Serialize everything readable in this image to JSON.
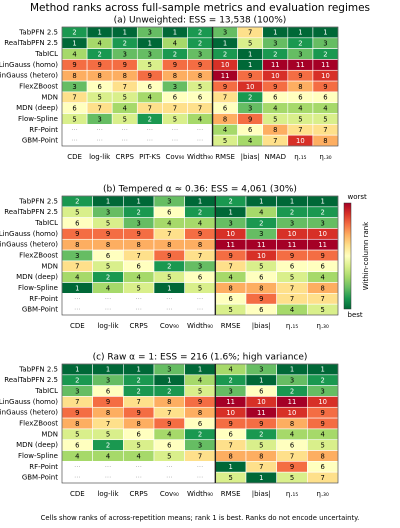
{
  "title": "Method ranks across full-sample metrics and evaluation regimes",
  "footnote": "Cells show ranks of across-repetition means; rank 1 is best. Ranks do not encode uncertainty.",
  "colorbar": {
    "label": "Within-column rank",
    "high_label": "worst",
    "low_label": "best",
    "clim": [
      1,
      11
    ],
    "colormap": "RdYlGn_r"
  },
  "chart_data": [
    {
      "type": "heatmap",
      "subtitle": "(a) Unweighted: ESS = 13,538 (100%)",
      "rows": [
        "TabPFN 2.5",
        "RealTabPFN 2.5",
        "TabICL",
        "LinGauss (homo)",
        "LinGauss (hetero)",
        "FlexZBoost",
        "MDN",
        "MDN (deep)",
        "Flow-Spline",
        "RF-Point",
        "GBM-Point"
      ],
      "columns": [
        "CDE",
        "log-lik",
        "CRPS",
        "PIT-KS",
        "Cov₉₀",
        "Width₉₀",
        "RMSE",
        "|bias|",
        "NMAD",
        "η.₁₅",
        "η.₃₀"
      ],
      "separator_after": 5,
      "na_label": "···",
      "values": [
        [
          2,
          1,
          1,
          3,
          1,
          2,
          3,
          7,
          1,
          1,
          1
        ],
        [
          1,
          4,
          2,
          1,
          4,
          2,
          1,
          5,
          3,
          2,
          3
        ],
        [
          4,
          2,
          3,
          3,
          2,
          3,
          2,
          1,
          2,
          3,
          2
        ],
        [
          9,
          9,
          9,
          5,
          9,
          9,
          10,
          1,
          11,
          11,
          11
        ],
        [
          8,
          8,
          8,
          9,
          8,
          8,
          11,
          9,
          10,
          9,
          10
        ],
        [
          3,
          6,
          7,
          6,
          3,
          5,
          9,
          10,
          9,
          8,
          9
        ],
        [
          7,
          5,
          5,
          4,
          6,
          6,
          7,
          2,
          6,
          6,
          6
        ],
        [
          6,
          7,
          4,
          7,
          7,
          7,
          6,
          3,
          4,
          4,
          4
        ],
        [
          5,
          3,
          5,
          2,
          5,
          4,
          8,
          9,
          5,
          5,
          5
        ],
        [
          null,
          null,
          null,
          null,
          null,
          null,
          4,
          6,
          8,
          7,
          7
        ],
        [
          null,
          null,
          null,
          null,
          null,
          null,
          5,
          4,
          7,
          10,
          8
        ]
      ]
    },
    {
      "type": "heatmap",
      "subtitle": "(b) Tempered α ≈ 0.36: ESS = 4,061 (30%)",
      "rows": [
        "TabPFN 2.5",
        "RealTabPFN 2.5",
        "TabICL",
        "LinGauss (homo)",
        "LinGauss (hetero)",
        "FlexZBoost",
        "MDN",
        "MDN (deep)",
        "Flow-Spline",
        "RF-Point",
        "GBM-Point"
      ],
      "columns": [
        "CDE",
        "log-lik",
        "CRPS",
        "Cov₉₀",
        "Width₉₀",
        "RMSE",
        "|bias|",
        "η.₁₅",
        "η.₃₀"
      ],
      "separator_after": 4,
      "na_label": "···",
      "values": [
        [
          2,
          1,
          1,
          3,
          1,
          2,
          1,
          1,
          1
        ],
        [
          5,
          3,
          2,
          6,
          2,
          1,
          4,
          2,
          2
        ],
        [
          6,
          5,
          3,
          4,
          4,
          3,
          2,
          3,
          3
        ],
        [
          9,
          9,
          9,
          7,
          9,
          10,
          3,
          10,
          10
        ],
        [
          8,
          8,
          8,
          8,
          8,
          11,
          11,
          11,
          11
        ],
        [
          3,
          6,
          7,
          9,
          7,
          9,
          10,
          9,
          9
        ],
        [
          7,
          5,
          6,
          2,
          3,
          7,
          5,
          6,
          6
        ],
        [
          4,
          2,
          4,
          5,
          6,
          4,
          6,
          5,
          4
        ],
        [
          1,
          4,
          5,
          1,
          5,
          8,
          8,
          7,
          8
        ],
        [
          null,
          null,
          null,
          null,
          null,
          6,
          9,
          7,
          7
        ],
        [
          null,
          null,
          null,
          null,
          null,
          5,
          6,
          4,
          5
        ]
      ]
    },
    {
      "type": "heatmap",
      "subtitle": "(c) Raw α = 1: ESS = 216 (1.6%; high variance)",
      "rows": [
        "TabPFN 2.5",
        "RealTabPFN 2.5",
        "TabICL",
        "LinGauss (homo)",
        "LinGauss (hetero)",
        "FlexZBoost",
        "MDN",
        "MDN (deep)",
        "Flow-Spline",
        "RF-Point",
        "GBM-Point"
      ],
      "columns": [
        "CDE",
        "log-lik",
        "CRPS",
        "Cov₉₀",
        "Width₉₀",
        "RMSE",
        "|bias|",
        "η.₁₅",
        "η.₃₀"
      ],
      "separator_after": 4,
      "na_label": "···",
      "values": [
        [
          1,
          1,
          1,
          3,
          1,
          4,
          3,
          1,
          1
        ],
        [
          2,
          3,
          2,
          1,
          4,
          2,
          1,
          3,
          2
        ],
        [
          3,
          6,
          2,
          2,
          5,
          3,
          6,
          2,
          3
        ],
        [
          7,
          9,
          7,
          8,
          9,
          11,
          10,
          11,
          10
        ],
        [
          9,
          8,
          9,
          7,
          8,
          10,
          11,
          10,
          9
        ],
        [
          8,
          7,
          8,
          9,
          6,
          9,
          9,
          8,
          9
        ],
        [
          5,
          5,
          6,
          4,
          2,
          6,
          2,
          4,
          4
        ],
        [
          6,
          2,
          5,
          6,
          3,
          7,
          5,
          6,
          5
        ],
        [
          4,
          4,
          4,
          5,
          7,
          8,
          8,
          7,
          8
        ],
        [
          null,
          null,
          null,
          null,
          null,
          1,
          7,
          9,
          6
        ],
        [
          null,
          null,
          null,
          null,
          null,
          5,
          1,
          5,
          7
        ]
      ]
    }
  ]
}
